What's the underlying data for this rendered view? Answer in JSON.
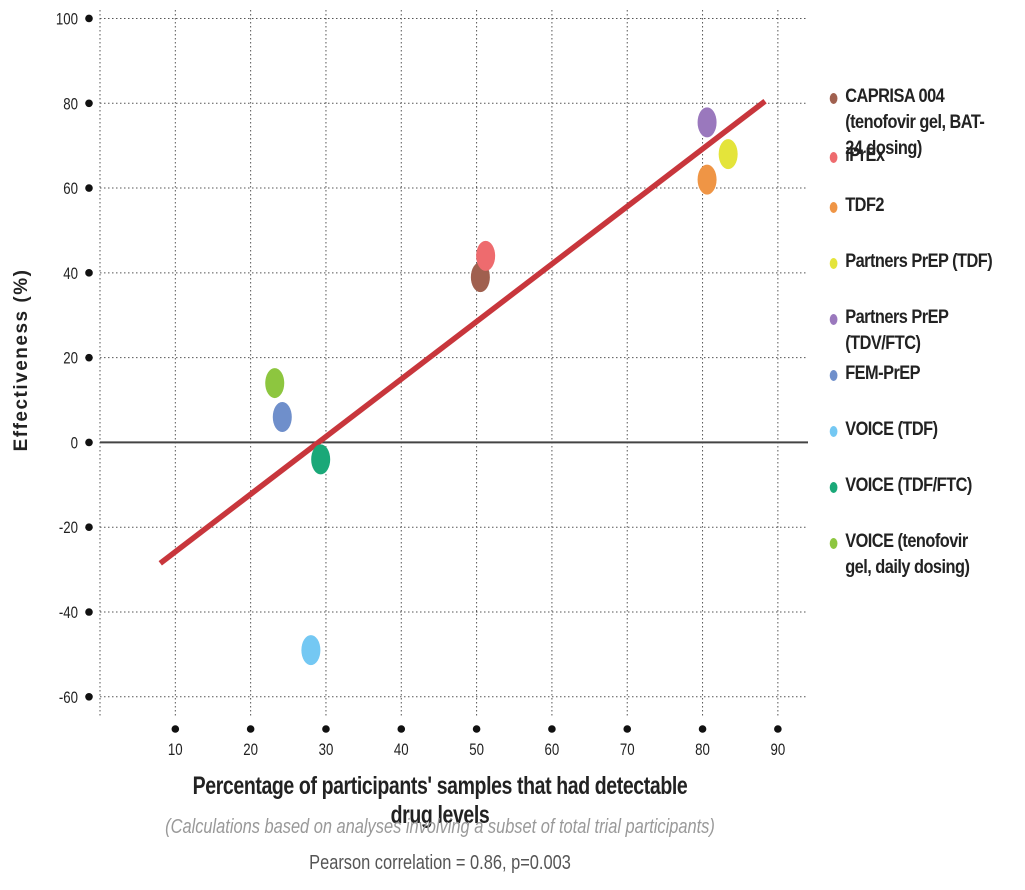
{
  "chart_data": {
    "type": "scatter",
    "title": "",
    "xlabel": "Percentage of participants' samples that had detectable drug levels",
    "ylabel": "Effectiveness (%)",
    "note": "(Calculations based on analyses involving a subset of total trial participants)",
    "stat": "Pearson correlation = 0.86, p=0.003",
    "xlim": [
      0,
      94
    ],
    "ylim": [
      -65,
      102
    ],
    "xticks": [
      10,
      20,
      30,
      40,
      50,
      60,
      70,
      80,
      90
    ],
    "yticks": [
      100,
      80,
      60,
      40,
      20,
      0,
      -20,
      -40,
      -60
    ],
    "grid": true,
    "legend_position": "right",
    "series": [
      {
        "name": "CAPRISA 004 (tenofovir gel, BAT-24 dosing)",
        "color": "#a0604f",
        "x": 50.5,
        "y": 39
      },
      {
        "name": "iPrEx",
        "color": "#ee6b6e",
        "x": 51.2,
        "y": 44
      },
      {
        "name": "TDF2",
        "color": "#ef9545",
        "x": 80.6,
        "y": 62
      },
      {
        "name": "Partners PrEP (TDF)",
        "color": "#e4e43a",
        "x": 83.4,
        "y": 68
      },
      {
        "name": "Partners PrEP (TDV/FTC)",
        "color": "#9a78bd",
        "x": 80.6,
        "y": 75.5
      },
      {
        "name": "FEM-PrEP",
        "color": "#6f8fcb",
        "x": 24.2,
        "y": 6
      },
      {
        "name": "VOICE (TDF)",
        "color": "#74c8f3",
        "x": 28.0,
        "y": -49
      },
      {
        "name": "VOICE (TDF/FTC)",
        "color": "#1aa878",
        "x": 29.3,
        "y": -4
      },
      {
        "name": "VOICE (tenofovir gel, daily dosing)",
        "color": "#8dc63f",
        "x": 23.2,
        "y": 14
      }
    ],
    "trendline": {
      "color": "#c8363c",
      "x": [
        8,
        88.3
      ],
      "y": [
        -28.5,
        80.5
      ]
    }
  },
  "legend_items": [
    "CAPRISA 004 (tenofovir gel, BAT-24 dosing)",
    "iPrEx",
    "TDF2",
    "Partners PrEP (TDF)",
    "Partners PrEP (TDV/FTC)",
    "FEM-PrEP",
    "VOICE (TDF)",
    "VOICE (TDF/FTC)",
    "VOICE (tenofovir gel, daily dosing)"
  ]
}
